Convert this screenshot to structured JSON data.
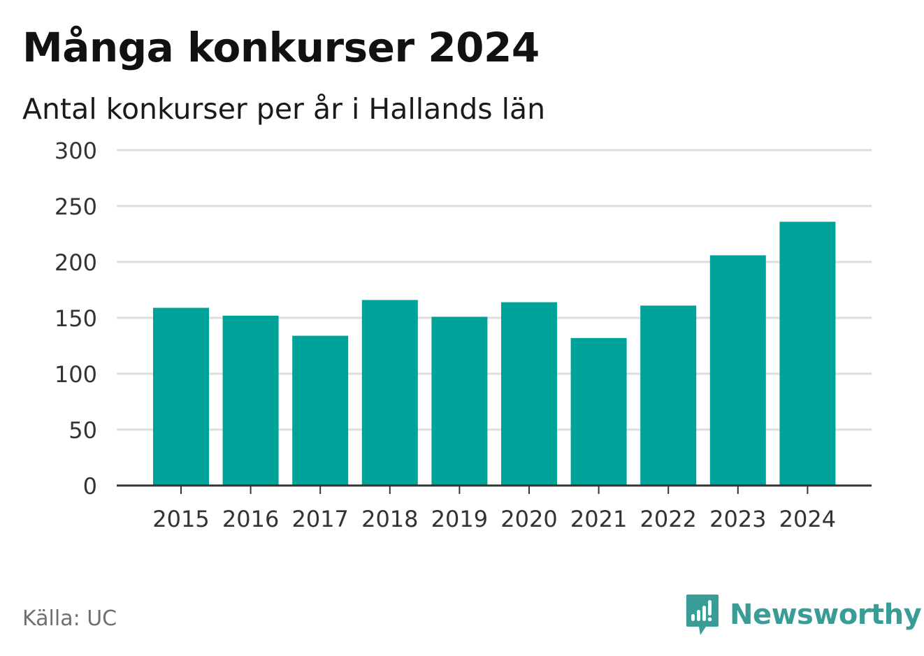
{
  "title": "Många konkurser 2024",
  "subtitle": "Antal konkurser per år i Hallands län",
  "source": "Källa: UC",
  "brand": {
    "name": "Newsworthy",
    "icon": "newsworthy-logo-icon",
    "color": "#3a9c96"
  },
  "colors": {
    "bar": "#00a39a",
    "grid": "#dddddd",
    "axis": "#333333",
    "text": "#333333"
  },
  "chart_data": {
    "type": "bar",
    "categories": [
      "2015",
      "2016",
      "2017",
      "2018",
      "2019",
      "2020",
      "2021",
      "2022",
      "2023",
      "2024"
    ],
    "values": [
      159,
      152,
      134,
      166,
      151,
      164,
      132,
      161,
      206,
      236
    ],
    "ylim": [
      0,
      300
    ],
    "yticks": [
      "0",
      "50",
      "100",
      "150",
      "200",
      "250",
      "300"
    ],
    "ytick_values": [
      0,
      50,
      100,
      150,
      200,
      250,
      300
    ],
    "xlabel": "",
    "ylabel": "",
    "grid": true
  }
}
